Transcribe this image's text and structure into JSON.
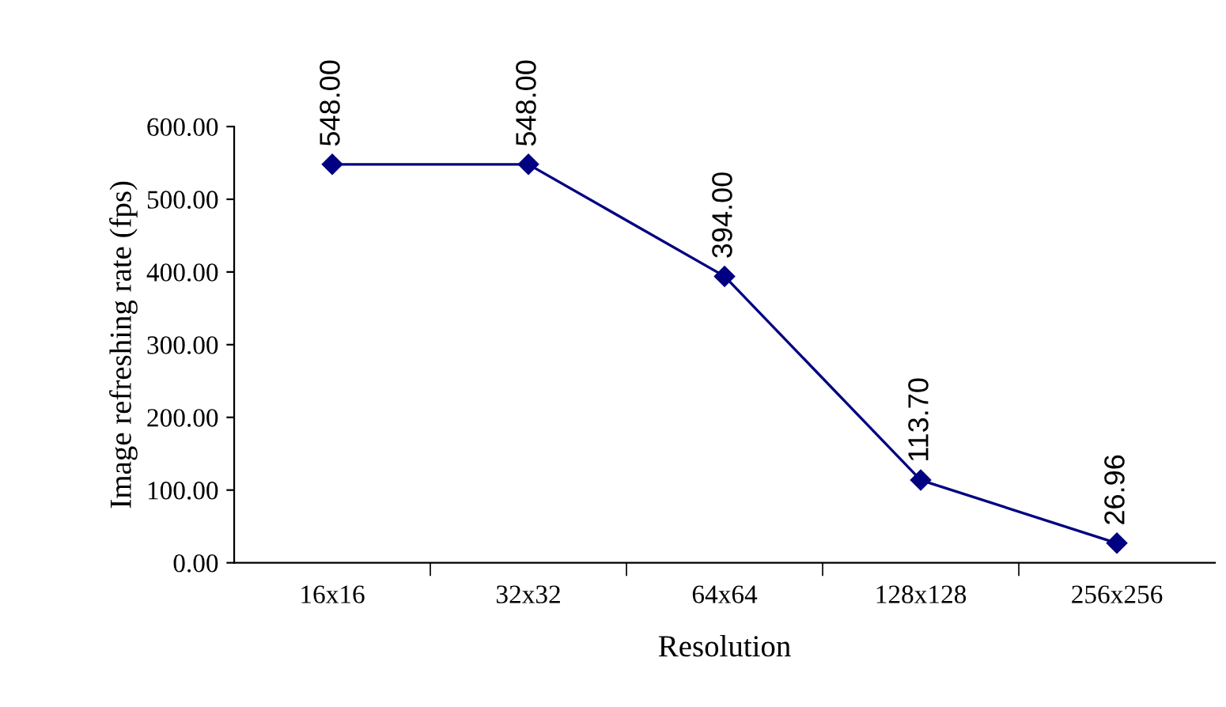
{
  "chart_data": {
    "type": "line",
    "xlabel": "Resolution",
    "ylabel": "Image refreshing rate (fps)",
    "categories": [
      "16x16",
      "32x32",
      "64x64",
      "128x128",
      "256x256"
    ],
    "series": [
      {
        "color": "#000080",
        "values": [
          548.0,
          548.0,
          394.0,
          113.7,
          26.96
        ],
        "value_labels": [
          "548.00",
          "548.00",
          "394.00",
          "113.70",
          "26.96"
        ]
      }
    ],
    "ylim": [
      0,
      600
    ],
    "yticks": [
      {
        "value": 0,
        "label": "0.00"
      },
      {
        "value": 100,
        "label": "100.00"
      },
      {
        "value": 200,
        "label": "200.00"
      },
      {
        "value": 300,
        "label": "300.00"
      },
      {
        "value": 400,
        "label": "400.00"
      },
      {
        "value": 500,
        "label": "500.00"
      },
      {
        "value": 600,
        "label": "600.00"
      }
    ],
    "grid": false,
    "marker": "diamond",
    "line_style": "solid"
  }
}
